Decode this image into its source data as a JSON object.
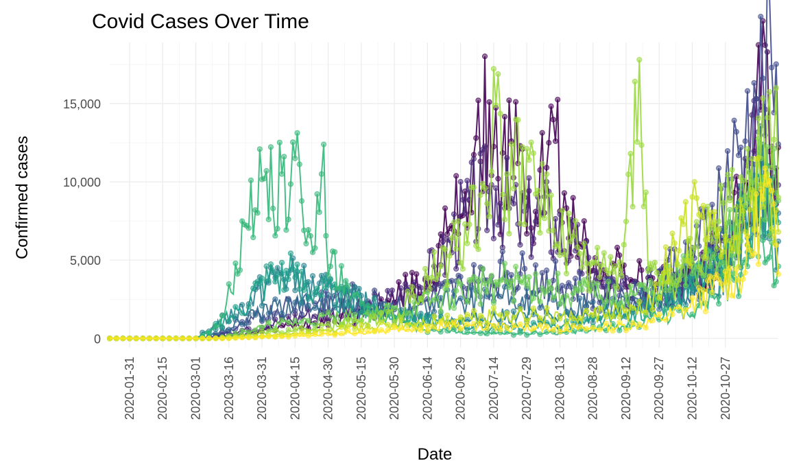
{
  "chart_data": {
    "type": "line",
    "title": "Covid Cases Over Time",
    "xlabel": "Date",
    "ylabel": "Confirmed cases",
    "x_type": "date",
    "xlim": [
      "2020-01-22",
      "2020-11-20"
    ],
    "ylim": [
      -600,
      18900
    ],
    "x_ticks": [
      "2020-01-31",
      "2020-02-15",
      "2020-03-01",
      "2020-03-16",
      "2020-03-31",
      "2020-04-15",
      "2020-04-30",
      "2020-05-15",
      "2020-05-30",
      "2020-06-14",
      "2020-06-29",
      "2020-07-14",
      "2020-07-29",
      "2020-08-13",
      "2020-08-28",
      "2020-09-12",
      "2020-09-27",
      "2020-10-12",
      "2020-10-27"
    ],
    "y_ticks": [
      0,
      5000,
      10000,
      15000
    ],
    "y_tick_labels": [
      "0",
      "5,000",
      "10,000",
      "15,000"
    ],
    "grid": true,
    "legend": "none",
    "markers": "points",
    "series": [
      {
        "color": "#440154",
        "points": [
          [
            "2020-01-22",
            0
          ],
          [
            "2020-03-01",
            0
          ],
          [
            "2020-03-20",
            200
          ],
          [
            "2020-04-15",
            900
          ],
          [
            "2020-05-10",
            1400
          ],
          [
            "2020-05-25",
            2000
          ],
          [
            "2020-06-05",
            3100
          ],
          [
            "2020-06-15",
            3600
          ],
          [
            "2020-06-25",
            7200
          ],
          [
            "2020-07-01",
            9400
          ],
          [
            "2020-07-08",
            11300
          ],
          [
            "2020-07-12",
            15100
          ],
          [
            "2020-07-16",
            10200
          ],
          [
            "2020-07-22",
            12600
          ],
          [
            "2020-07-28",
            9000
          ],
          [
            "2020-08-02",
            8100
          ],
          [
            "2020-08-08",
            12500
          ],
          [
            "2020-08-11",
            12600
          ],
          [
            "2020-08-17",
            6400
          ],
          [
            "2020-08-24",
            7500
          ],
          [
            "2020-08-30",
            3800
          ],
          [
            "2020-09-10",
            4400
          ],
          [
            "2020-09-25",
            3100
          ],
          [
            "2020-10-10",
            4100
          ],
          [
            "2020-10-25",
            5200
          ],
          [
            "2020-11-05",
            9000
          ],
          [
            "2020-11-12",
            14600
          ],
          [
            "2020-11-15",
            18300
          ],
          [
            "2020-11-18",
            10300
          ],
          [
            "2020-11-20",
            12200
          ]
        ]
      },
      {
        "color": "#482878",
        "points": [
          [
            "2020-01-22",
            0
          ],
          [
            "2020-03-05",
            0
          ],
          [
            "2020-03-25",
            600
          ],
          [
            "2020-04-20",
            1500
          ],
          [
            "2020-05-15",
            1900
          ],
          [
            "2020-06-01",
            2600
          ],
          [
            "2020-06-20",
            4700
          ],
          [
            "2020-07-01",
            8000
          ],
          [
            "2020-07-15",
            9600
          ],
          [
            "2020-07-25",
            7300
          ],
          [
            "2020-08-05",
            7900
          ],
          [
            "2020-08-20",
            5600
          ],
          [
            "2020-09-01",
            3300
          ],
          [
            "2020-09-20",
            2600
          ],
          [
            "2020-10-10",
            3400
          ],
          [
            "2020-10-30",
            6100
          ],
          [
            "2020-11-10",
            11800
          ],
          [
            "2020-11-20",
            9800
          ]
        ]
      },
      {
        "color": "#3e4989",
        "points": [
          [
            "2020-01-22",
            0
          ],
          [
            "2020-03-08",
            0
          ],
          [
            "2020-03-25",
            1000
          ],
          [
            "2020-04-10",
            2100
          ],
          [
            "2020-05-01",
            2700
          ],
          [
            "2020-05-20",
            2400
          ],
          [
            "2020-06-10",
            2200
          ],
          [
            "2020-06-30",
            3300
          ],
          [
            "2020-07-20",
            4200
          ],
          [
            "2020-08-10",
            3700
          ],
          [
            "2020-09-01",
            2700
          ],
          [
            "2020-09-20",
            3200
          ],
          [
            "2020-10-15",
            5900
          ],
          [
            "2020-10-27",
            9800
          ],
          [
            "2020-11-05",
            12600
          ],
          [
            "2020-11-10",
            15300
          ],
          [
            "2020-11-17",
            17300
          ],
          [
            "2020-11-20",
            12400
          ]
        ]
      },
      {
        "color": "#31688e",
        "points": [
          [
            "2020-01-22",
            0
          ],
          [
            "2020-03-05",
            0
          ],
          [
            "2020-03-28",
            1500
          ],
          [
            "2020-04-15",
            2300
          ],
          [
            "2020-05-05",
            2000
          ],
          [
            "2020-06-01",
            1700
          ],
          [
            "2020-06-25",
            2300
          ],
          [
            "2020-07-15",
            2700
          ],
          [
            "2020-08-05",
            2200
          ],
          [
            "2020-08-30",
            2000
          ],
          [
            "2020-09-25",
            2500
          ],
          [
            "2020-10-20",
            4200
          ],
          [
            "2020-11-05",
            7300
          ],
          [
            "2020-11-15",
            11000
          ],
          [
            "2020-11-20",
            8000
          ]
        ]
      },
      {
        "color": "#26828e",
        "points": [
          [
            "2020-01-22",
            0
          ],
          [
            "2020-03-01",
            0
          ],
          [
            "2020-03-25",
            2200
          ],
          [
            "2020-04-08",
            4200
          ],
          [
            "2020-04-20",
            3400
          ],
          [
            "2020-05-10",
            2500
          ],
          [
            "2020-06-05",
            1400
          ],
          [
            "2020-07-01",
            1100
          ],
          [
            "2020-07-25",
            1500
          ],
          [
            "2020-08-20",
            1200
          ],
          [
            "2020-09-15",
            1800
          ],
          [
            "2020-10-10",
            2800
          ],
          [
            "2020-10-30",
            4800
          ],
          [
            "2020-11-12",
            9500
          ],
          [
            "2020-11-20",
            6200
          ]
        ]
      },
      {
        "color": "#1f9e89",
        "points": [
          [
            "2020-01-22",
            0
          ],
          [
            "2020-03-03",
            0
          ],
          [
            "2020-03-20",
            1800
          ],
          [
            "2020-03-30",
            3500
          ],
          [
            "2020-04-05",
            4300
          ],
          [
            "2020-04-15",
            3900
          ],
          [
            "2020-04-25",
            3200
          ],
          [
            "2020-05-10",
            2300
          ],
          [
            "2020-06-01",
            1600
          ],
          [
            "2020-06-25",
            900
          ],
          [
            "2020-07-20",
            700
          ],
          [
            "2020-08-15",
            900
          ],
          [
            "2020-09-10",
            1300
          ],
          [
            "2020-10-05",
            2400
          ],
          [
            "2020-10-25",
            4900
          ],
          [
            "2020-11-10",
            8900
          ],
          [
            "2020-11-20",
            7400
          ]
        ]
      },
      {
        "color": "#35b779",
        "points": [
          [
            "2020-01-22",
            0
          ],
          [
            "2020-03-01",
            0
          ],
          [
            "2020-03-12",
            900
          ],
          [
            "2020-03-19",
            4800
          ],
          [
            "2020-03-24",
            7200
          ],
          [
            "2020-03-28",
            8200
          ],
          [
            "2020-04-02",
            10700
          ],
          [
            "2020-04-05",
            8300
          ],
          [
            "2020-04-09",
            10500
          ],
          [
            "2020-04-12",
            7600
          ],
          [
            "2020-04-15",
            11500
          ],
          [
            "2020-04-19",
            6900
          ],
          [
            "2020-04-23",
            5500
          ],
          [
            "2020-04-27",
            10500
          ],
          [
            "2020-05-01",
            4600
          ],
          [
            "2020-05-10",
            2400
          ],
          [
            "2020-05-25",
            1300
          ],
          [
            "2020-06-15",
            500
          ],
          [
            "2020-07-15",
            300
          ],
          [
            "2020-08-15",
            400
          ],
          [
            "2020-09-15",
            900
          ],
          [
            "2020-10-15",
            2100
          ],
          [
            "2020-11-01",
            3800
          ],
          [
            "2020-11-12",
            7600
          ],
          [
            "2020-11-20",
            4600
          ]
        ]
      },
      {
        "color": "#6ece58",
        "points": [
          [
            "2020-01-22",
            0
          ],
          [
            "2020-03-10",
            0
          ],
          [
            "2020-04-01",
            700
          ],
          [
            "2020-05-01",
            1300
          ],
          [
            "2020-06-01",
            1700
          ],
          [
            "2020-06-25",
            2700
          ],
          [
            "2020-07-15",
            3600
          ],
          [
            "2020-08-05",
            3200
          ],
          [
            "2020-09-01",
            2600
          ],
          [
            "2020-09-25",
            2900
          ],
          [
            "2020-10-15",
            4400
          ],
          [
            "2020-11-01",
            6600
          ],
          [
            "2020-11-12",
            9800
          ],
          [
            "2020-11-20",
            8800
          ]
        ]
      },
      {
        "color": "#9ad93c",
        "points": [
          [
            "2020-01-22",
            0
          ],
          [
            "2020-03-08",
            0
          ],
          [
            "2020-04-05",
            400
          ],
          [
            "2020-05-10",
            900
          ],
          [
            "2020-06-01",
            1600
          ],
          [
            "2020-06-20",
            4600
          ],
          [
            "2020-07-01",
            7300
          ],
          [
            "2020-07-10",
            9600
          ],
          [
            "2020-07-15",
            14900
          ],
          [
            "2020-07-20",
            10500
          ],
          [
            "2020-07-30",
            11400
          ],
          [
            "2020-08-10",
            6900
          ],
          [
            "2020-08-25",
            4800
          ],
          [
            "2020-09-10",
            4000
          ],
          [
            "2020-09-18",
            17800
          ],
          [
            "2020-09-22",
            4300
          ],
          [
            "2020-10-05",
            3400
          ],
          [
            "2020-10-20",
            7000
          ],
          [
            "2020-11-05",
            8500
          ],
          [
            "2020-11-12",
            11500
          ],
          [
            "2020-11-19",
            16000
          ],
          [
            "2020-11-20",
            9000
          ]
        ]
      },
      {
        "color": "#c8e020",
        "points": [
          [
            "2020-01-22",
            0
          ],
          [
            "2020-03-15",
            0
          ],
          [
            "2020-04-15",
            300
          ],
          [
            "2020-05-20",
            700
          ],
          [
            "2020-06-20",
            1100
          ],
          [
            "2020-07-20",
            1600
          ],
          [
            "2020-08-20",
            1300
          ],
          [
            "2020-09-20",
            1800
          ],
          [
            "2020-10-15",
            7900
          ],
          [
            "2020-10-25",
            5200
          ],
          [
            "2020-11-05",
            6800
          ],
          [
            "2020-11-15",
            10500
          ],
          [
            "2020-11-20",
            6800
          ]
        ]
      },
      {
        "color": "#fde725",
        "points": [
          [
            "2020-01-22",
            0
          ],
          [
            "2020-03-15",
            0
          ],
          [
            "2020-04-20",
            200
          ],
          [
            "2020-05-25",
            500
          ],
          [
            "2020-06-25",
            800
          ],
          [
            "2020-07-25",
            700
          ],
          [
            "2020-08-25",
            600
          ],
          [
            "2020-09-20",
            900
          ],
          [
            "2020-10-10",
            1900
          ],
          [
            "2020-10-25",
            3500
          ],
          [
            "2020-11-05",
            4200
          ],
          [
            "2020-11-15",
            9800
          ],
          [
            "2020-11-20",
            4100
          ]
        ]
      }
    ]
  }
}
